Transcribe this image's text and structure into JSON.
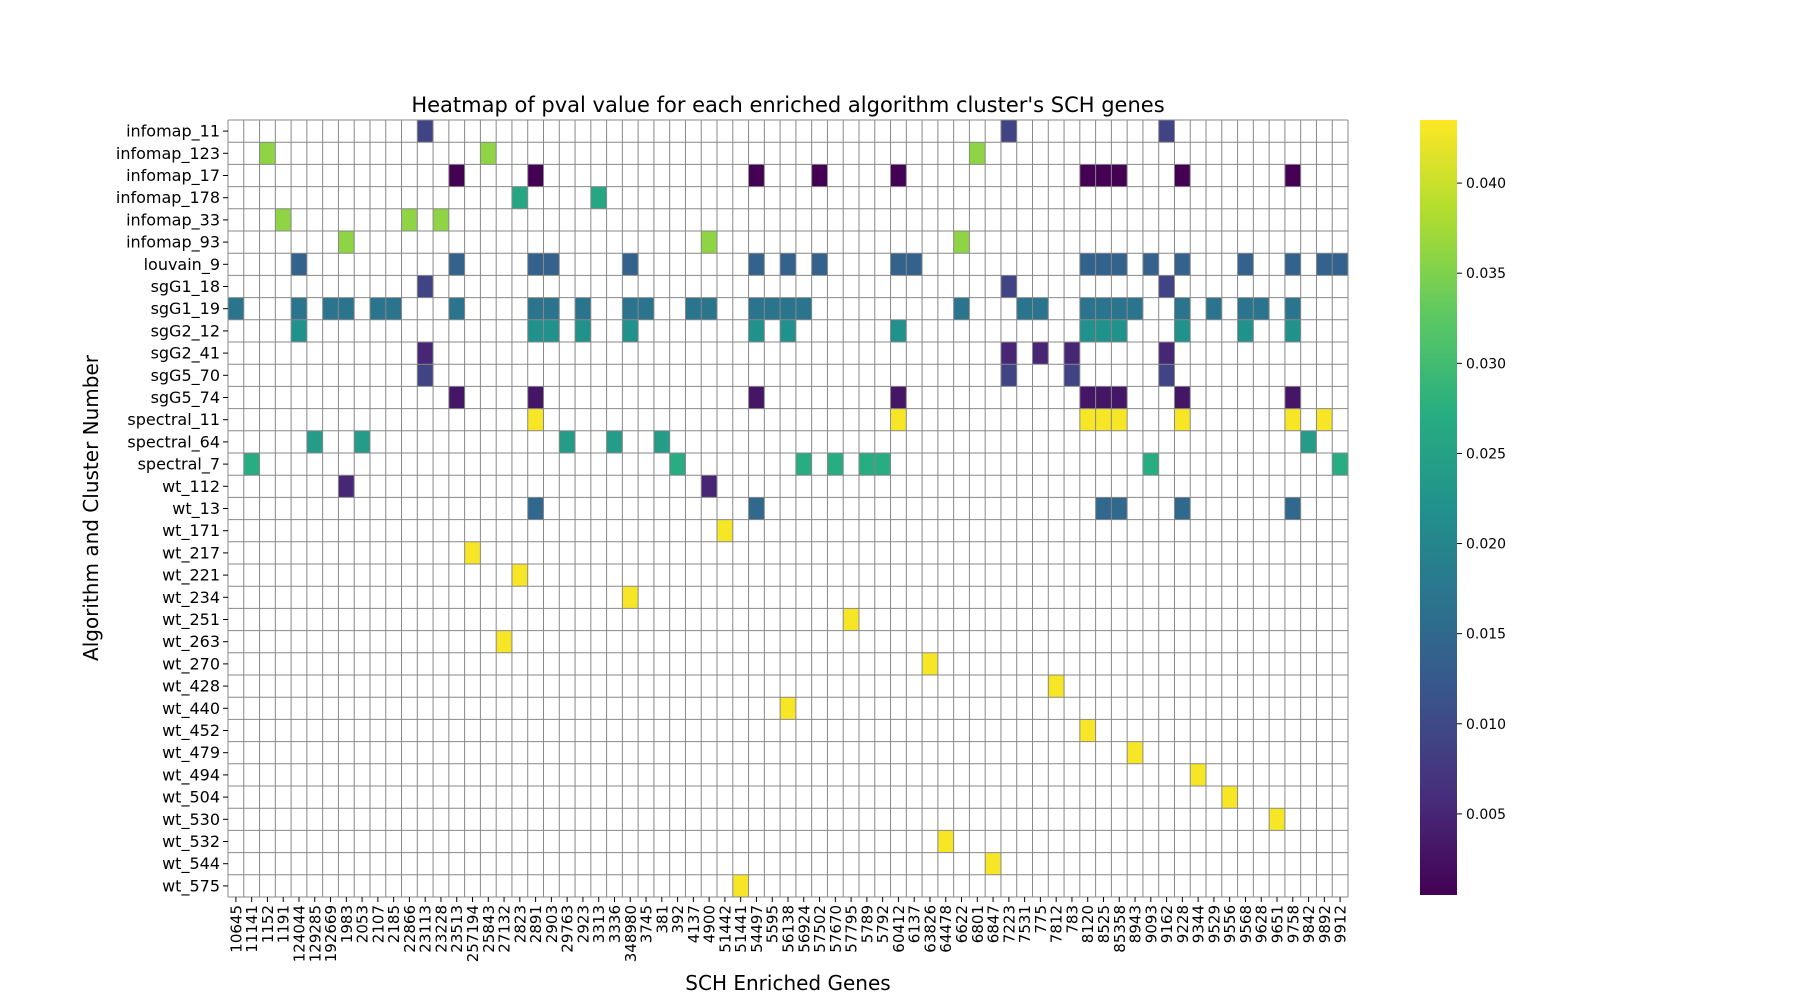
{
  "chart_data": {
    "type": "heatmap",
    "title": "Heatmap of pval value for each enriched algorithm cluster's SCH genes",
    "xlabel": "SCH Enriched Genes",
    "ylabel": "Algorithm and Cluster Number",
    "colormap": "viridis",
    "colorbar": {
      "range": [
        0.0005,
        0.0435
      ],
      "ticks": [
        "0.005",
        "0.010",
        "0.015",
        "0.020",
        "0.025",
        "0.030",
        "0.035",
        "0.040"
      ],
      "tick_values": [
        0.005,
        0.01,
        0.015,
        0.02,
        0.025,
        0.03,
        0.035,
        0.04
      ]
    },
    "colors": {
      "grid": "#888888",
      "empty": "#ffffff"
    },
    "x_categories": [
      "10645",
      "11141",
      "1152",
      "1191",
      "124044",
      "129285",
      "192669",
      "1983",
      "2053",
      "2107",
      "2185",
      "22866",
      "23113",
      "23228",
      "23513",
      "257194",
      "25843",
      "27132",
      "2823",
      "2891",
      "2903",
      "29763",
      "2923",
      "3313",
      "3336",
      "348980",
      "3745",
      "381",
      "392",
      "4137",
      "4900",
      "51442",
      "51441",
      "54497",
      "5595",
      "56138",
      "56924",
      "57502",
      "57670",
      "57795",
      "5789",
      "5792",
      "60412",
      "6137",
      "63826",
      "64478",
      "6622",
      "6801",
      "6847",
      "7223",
      "7531",
      "775",
      "7812",
      "783",
      "8120",
      "8525",
      "85358",
      "8943",
      "9093",
      "9162",
      "9228",
      "9344",
      "9529",
      "9556",
      "9568",
      "9628",
      "9651",
      "9758",
      "9842",
      "9892",
      "9912"
    ],
    "y_categories": [
      "infomap_11",
      "infomap_123",
      "infomap_17",
      "infomap_178",
      "infomap_33",
      "infomap_93",
      "louvain_9",
      "sgG1_18",
      "sgG1_19",
      "sgG2_12",
      "sgG2_41",
      "sgG5_70",
      "sgG5_74",
      "spectral_11",
      "spectral_64",
      "spectral_7",
      "wt_112",
      "wt_13",
      "wt_171",
      "wt_217",
      "wt_221",
      "wt_234",
      "wt_251",
      "wt_263",
      "wt_270",
      "wt_428",
      "wt_440",
      "wt_452",
      "wt_479",
      "wt_494",
      "wt_504",
      "wt_530",
      "wt_532",
      "wt_544",
      "wt_575"
    ],
    "cells": [
      [
        0,
        12,
        0.009
      ],
      [
        0,
        49,
        0.009
      ],
      [
        0,
        59,
        0.009
      ],
      [
        1,
        2,
        0.036
      ],
      [
        1,
        16,
        0.036
      ],
      [
        1,
        47,
        0.036
      ],
      [
        2,
        14,
        0.0005
      ],
      [
        2,
        19,
        0.0005
      ],
      [
        2,
        33,
        0.0005
      ],
      [
        2,
        37,
        0.0005
      ],
      [
        2,
        42,
        0.0005
      ],
      [
        2,
        54,
        0.0005
      ],
      [
        2,
        55,
        0.0005
      ],
      [
        2,
        56,
        0.0005
      ],
      [
        2,
        60,
        0.0005
      ],
      [
        2,
        67,
        0.0005
      ],
      [
        3,
        18,
        0.026
      ],
      [
        3,
        23,
        0.026
      ],
      [
        4,
        3,
        0.036
      ],
      [
        4,
        11,
        0.036
      ],
      [
        4,
        13,
        0.036
      ],
      [
        5,
        7,
        0.036
      ],
      [
        5,
        30,
        0.036
      ],
      [
        5,
        46,
        0.036
      ],
      [
        6,
        4,
        0.014
      ],
      [
        6,
        14,
        0.014
      ],
      [
        6,
        19,
        0.014
      ],
      [
        6,
        20,
        0.014
      ],
      [
        6,
        25,
        0.014
      ],
      [
        6,
        33,
        0.014
      ],
      [
        6,
        35,
        0.014
      ],
      [
        6,
        37,
        0.014
      ],
      [
        6,
        42,
        0.014
      ],
      [
        6,
        43,
        0.014
      ],
      [
        6,
        54,
        0.014
      ],
      [
        6,
        55,
        0.014
      ],
      [
        6,
        56,
        0.014
      ],
      [
        6,
        58,
        0.014
      ],
      [
        6,
        60,
        0.014
      ],
      [
        6,
        64,
        0.014
      ],
      [
        6,
        67,
        0.014
      ],
      [
        6,
        69,
        0.014
      ],
      [
        6,
        70,
        0.014
      ],
      [
        7,
        12,
        0.009
      ],
      [
        7,
        49,
        0.009
      ],
      [
        7,
        59,
        0.009
      ],
      [
        8,
        0,
        0.017
      ],
      [
        8,
        4,
        0.017
      ],
      [
        8,
        6,
        0.017
      ],
      [
        8,
        7,
        0.017
      ],
      [
        8,
        9,
        0.017
      ],
      [
        8,
        10,
        0.017
      ],
      [
        8,
        14,
        0.017
      ],
      [
        8,
        19,
        0.017
      ],
      [
        8,
        20,
        0.017
      ],
      [
        8,
        22,
        0.017
      ],
      [
        8,
        25,
        0.017
      ],
      [
        8,
        26,
        0.017
      ],
      [
        8,
        29,
        0.017
      ],
      [
        8,
        30,
        0.017
      ],
      [
        8,
        33,
        0.017
      ],
      [
        8,
        34,
        0.017
      ],
      [
        8,
        35,
        0.017
      ],
      [
        8,
        36,
        0.017
      ],
      [
        8,
        46,
        0.017
      ],
      [
        8,
        50,
        0.017
      ],
      [
        8,
        51,
        0.017
      ],
      [
        8,
        54,
        0.017
      ],
      [
        8,
        55,
        0.017
      ],
      [
        8,
        56,
        0.017
      ],
      [
        8,
        57,
        0.017
      ],
      [
        8,
        60,
        0.017
      ],
      [
        8,
        62,
        0.017
      ],
      [
        8,
        64,
        0.017
      ],
      [
        8,
        65,
        0.017
      ],
      [
        8,
        67,
        0.017
      ],
      [
        9,
        4,
        0.022
      ],
      [
        9,
        19,
        0.022
      ],
      [
        9,
        20,
        0.022
      ],
      [
        9,
        22,
        0.022
      ],
      [
        9,
        25,
        0.022
      ],
      [
        9,
        33,
        0.022
      ],
      [
        9,
        35,
        0.022
      ],
      [
        9,
        42,
        0.022
      ],
      [
        9,
        54,
        0.022
      ],
      [
        9,
        55,
        0.022
      ],
      [
        9,
        56,
        0.022
      ],
      [
        9,
        60,
        0.022
      ],
      [
        9,
        64,
        0.022
      ],
      [
        9,
        67,
        0.022
      ],
      [
        10,
        12,
        0.005
      ],
      [
        10,
        49,
        0.005
      ],
      [
        10,
        51,
        0.005
      ],
      [
        10,
        53,
        0.005
      ],
      [
        10,
        59,
        0.005
      ],
      [
        11,
        12,
        0.009
      ],
      [
        11,
        49,
        0.009
      ],
      [
        11,
        53,
        0.009
      ],
      [
        11,
        59,
        0.009
      ],
      [
        12,
        14,
        0.003
      ],
      [
        12,
        19,
        0.003
      ],
      [
        12,
        33,
        0.003
      ],
      [
        12,
        42,
        0.003
      ],
      [
        12,
        54,
        0.003
      ],
      [
        12,
        55,
        0.003
      ],
      [
        12,
        56,
        0.003
      ],
      [
        12,
        60,
        0.003
      ],
      [
        12,
        67,
        0.003
      ],
      [
        13,
        19,
        0.043
      ],
      [
        13,
        42,
        0.043
      ],
      [
        13,
        54,
        0.043
      ],
      [
        13,
        55,
        0.043
      ],
      [
        13,
        56,
        0.043
      ],
      [
        13,
        60,
        0.043
      ],
      [
        13,
        67,
        0.043
      ],
      [
        13,
        69,
        0.043
      ],
      [
        14,
        5,
        0.024
      ],
      [
        14,
        8,
        0.024
      ],
      [
        14,
        21,
        0.024
      ],
      [
        14,
        24,
        0.024
      ],
      [
        14,
        27,
        0.024
      ],
      [
        14,
        68,
        0.024
      ],
      [
        15,
        1,
        0.027
      ],
      [
        15,
        28,
        0.027
      ],
      [
        15,
        36,
        0.027
      ],
      [
        15,
        38,
        0.027
      ],
      [
        15,
        40,
        0.027
      ],
      [
        15,
        41,
        0.027
      ],
      [
        15,
        58,
        0.027
      ],
      [
        15,
        70,
        0.027
      ],
      [
        16,
        7,
        0.005
      ],
      [
        16,
        30,
        0.005
      ],
      [
        17,
        19,
        0.015
      ],
      [
        17,
        33,
        0.015
      ],
      [
        17,
        55,
        0.015
      ],
      [
        17,
        56,
        0.015
      ],
      [
        17,
        60,
        0.015
      ],
      [
        17,
        67,
        0.015
      ],
      [
        18,
        31,
        0.043
      ],
      [
        19,
        15,
        0.043
      ],
      [
        20,
        18,
        0.043
      ],
      [
        21,
        25,
        0.043
      ],
      [
        22,
        39,
        0.043
      ],
      [
        23,
        17,
        0.043
      ],
      [
        24,
        44,
        0.043
      ],
      [
        25,
        52,
        0.043
      ],
      [
        26,
        35,
        0.043
      ],
      [
        27,
        54,
        0.043
      ],
      [
        28,
        57,
        0.043
      ],
      [
        29,
        61,
        0.043
      ],
      [
        30,
        63,
        0.043
      ],
      [
        31,
        66,
        0.043
      ],
      [
        32,
        45,
        0.043
      ],
      [
        33,
        48,
        0.043
      ],
      [
        34,
        32,
        0.043
      ]
    ]
  }
}
